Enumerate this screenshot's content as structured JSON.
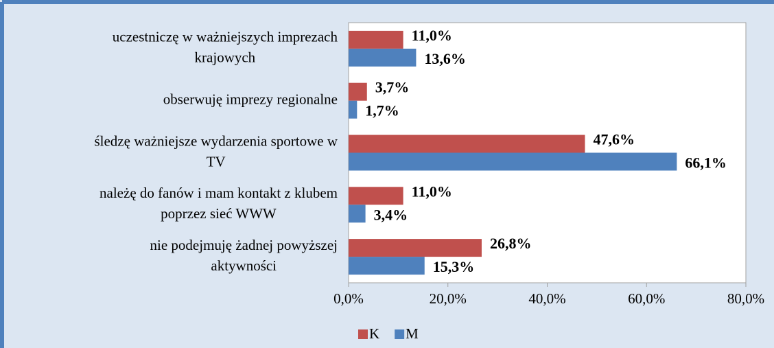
{
  "chart_data": {
    "type": "hbar",
    "categories": [
      [
        "uczestniczę w ważniejszych imprezach",
        "krajowych"
      ],
      [
        "obserwuję imprezy regionalne"
      ],
      [
        "śledzę ważniejsze wydarzenia sportowe w",
        "TV"
      ],
      [
        "należę do fanów i mam kontakt z klubem",
        "poprzez sieć WWW"
      ],
      [
        "nie podejmuję żadnej powyższej",
        "aktywności"
      ]
    ],
    "series": [
      {
        "name": "K",
        "color": "#c0504d",
        "values": [
          11.0,
          3.7,
          47.6,
          11.0,
          26.8
        ],
        "value_labels": [
          "11,0%",
          "3,7%",
          "47,6%",
          "11,0%",
          "26,8%"
        ]
      },
      {
        "name": "M",
        "color": "#4f81bd",
        "values": [
          13.6,
          1.7,
          66.1,
          3.4,
          15.3
        ],
        "value_labels": [
          "13,6%",
          "1,7%",
          "66,1%",
          "3,4%",
          "15,3%"
        ]
      }
    ],
    "xlim": [
      0,
      80
    ],
    "xticks": [
      {
        "value": 0,
        "label": "0,0%"
      },
      {
        "value": 20,
        "label": "20,0%"
      },
      {
        "value": 40,
        "label": "40,0%"
      },
      {
        "value": 60,
        "label": "60,0%"
      },
      {
        "value": 80,
        "label": "80,0%"
      }
    ],
    "legend": "bottom"
  }
}
